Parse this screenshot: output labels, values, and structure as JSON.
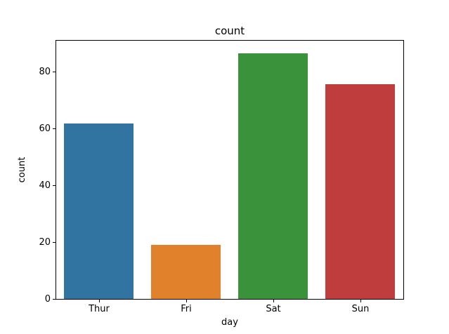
{
  "chart_data": {
    "type": "bar",
    "title": "count",
    "xlabel": "day",
    "ylabel": "count",
    "categories": [
      "Thur",
      "Fri",
      "Sat",
      "Sun"
    ],
    "values": [
      62,
      19,
      87,
      76
    ],
    "bar_colors": [
      "#3274a1",
      "#e1812c",
      "#3a923a",
      "#c03d3e"
    ],
    "yticks": [
      0,
      20,
      40,
      60,
      80
    ],
    "ylim": [
      0,
      91.35
    ],
    "grid": false,
    "legend": "none",
    "background_color": "#ffffff",
    "spine_color": "#000000"
  }
}
